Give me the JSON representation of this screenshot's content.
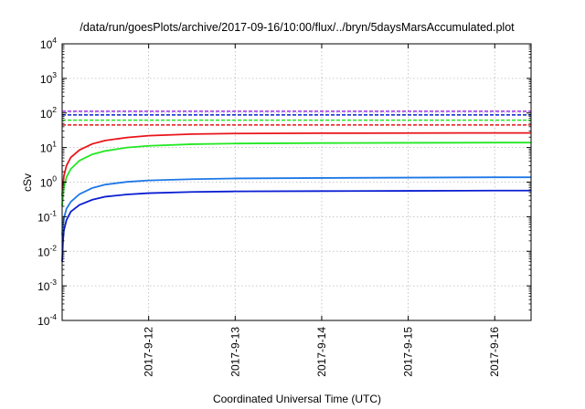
{
  "chart_data": {
    "type": "line",
    "title": "/data/run/goesPlots/archive/2017-09-16/10:00/flux/../bryn/5daysMarsAccumulated.plot",
    "xlabel": "Coordinated Universal Time (UTC)",
    "ylabel": "cSv",
    "y_scale": "log",
    "ylim": [
      0.0001,
      10000
    ],
    "x_unit": "days since 2017-09-11 00:00 UTC",
    "xlim": [
      1.0,
      6.42
    ],
    "x_ticks": [
      {
        "value": 2,
        "label": "2017-9-12"
      },
      {
        "value": 3,
        "label": "2017-9-13"
      },
      {
        "value": 4,
        "label": "2017-9-14"
      },
      {
        "value": 5,
        "label": "2017-9-15"
      },
      {
        "value": 6,
        "label": "2017-9-16"
      }
    ],
    "y_ticks": [
      {
        "value": 0.0001,
        "base": "10",
        "exp": "-4"
      },
      {
        "value": 0.001,
        "base": "10",
        "exp": "-3"
      },
      {
        "value": 0.01,
        "base": "10",
        "exp": "-2"
      },
      {
        "value": 0.1,
        "base": "10",
        "exp": "-1"
      },
      {
        "value": 1,
        "base": "10",
        "exp": "0"
      },
      {
        "value": 10,
        "base": "10",
        "exp": "1"
      },
      {
        "value": 100,
        "base": "10",
        "exp": "2"
      },
      {
        "value": 1000,
        "base": "10",
        "exp": "3"
      },
      {
        "value": 10000,
        "base": "10",
        "exp": "4"
      }
    ],
    "grid": true,
    "series": [
      {
        "color": "#e8151b",
        "style": "solid",
        "x": [
          1.0,
          1.02,
          1.05,
          1.1,
          1.2,
          1.35,
          1.5,
          1.75,
          2.0,
          2.5,
          3.0,
          4.0,
          5.0,
          6.0,
          6.42
        ],
        "y": [
          0.4,
          1.5,
          3.0,
          5.2,
          8.5,
          12.8,
          16.0,
          19.5,
          22.0,
          24.5,
          25.5,
          26.0,
          26.3,
          26.5,
          26.5
        ]
      },
      {
        "color": "#22e822",
        "style": "solid",
        "x": [
          1.0,
          1.02,
          1.05,
          1.1,
          1.2,
          1.35,
          1.5,
          1.75,
          2.0,
          2.5,
          3.0,
          4.0,
          5.0,
          6.0,
          6.42
        ],
        "y": [
          0.2,
          0.7,
          1.4,
          2.4,
          4.2,
          6.4,
          8.0,
          10.0,
          11.2,
          12.5,
          13.1,
          13.5,
          13.7,
          13.9,
          13.9
        ]
      },
      {
        "color": "#1e78e6",
        "style": "solid",
        "x": [
          1.0,
          1.02,
          1.05,
          1.1,
          1.2,
          1.35,
          1.5,
          1.75,
          2.0,
          2.5,
          3.0,
          4.0,
          5.0,
          6.0,
          6.42
        ],
        "y": [
          0.03,
          0.09,
          0.17,
          0.27,
          0.45,
          0.68,
          0.85,
          1.02,
          1.12,
          1.22,
          1.28,
          1.32,
          1.35,
          1.38,
          1.38
        ]
      },
      {
        "color": "#0a1ed2",
        "style": "solid",
        "x": [
          1.0,
          1.01,
          1.02,
          1.05,
          1.1,
          1.2,
          1.35,
          1.5,
          1.75,
          2.0,
          2.5,
          3.0,
          4.0,
          5.0,
          6.0,
          6.42
        ],
        "y": [
          0.005,
          0.02,
          0.04,
          0.08,
          0.14,
          0.22,
          0.31,
          0.38,
          0.44,
          0.48,
          0.52,
          0.54,
          0.55,
          0.56,
          0.57,
          0.57
        ]
      },
      {
        "color": "#e8151b",
        "style": "dashed",
        "x": [
          1.0,
          6.42
        ],
        "y": [
          45,
          45
        ]
      },
      {
        "color": "#22e822",
        "style": "dashed",
        "x": [
          1.0,
          6.42
        ],
        "y": [
          62,
          62
        ]
      },
      {
        "color": "#0a1ed2",
        "style": "dashed",
        "x": [
          1.0,
          6.42
        ],
        "y": [
          88,
          88
        ]
      },
      {
        "color": "#9a2be8",
        "style": "dashed",
        "x": [
          1.0,
          6.42
        ],
        "y": [
          112,
          112
        ]
      }
    ]
  }
}
